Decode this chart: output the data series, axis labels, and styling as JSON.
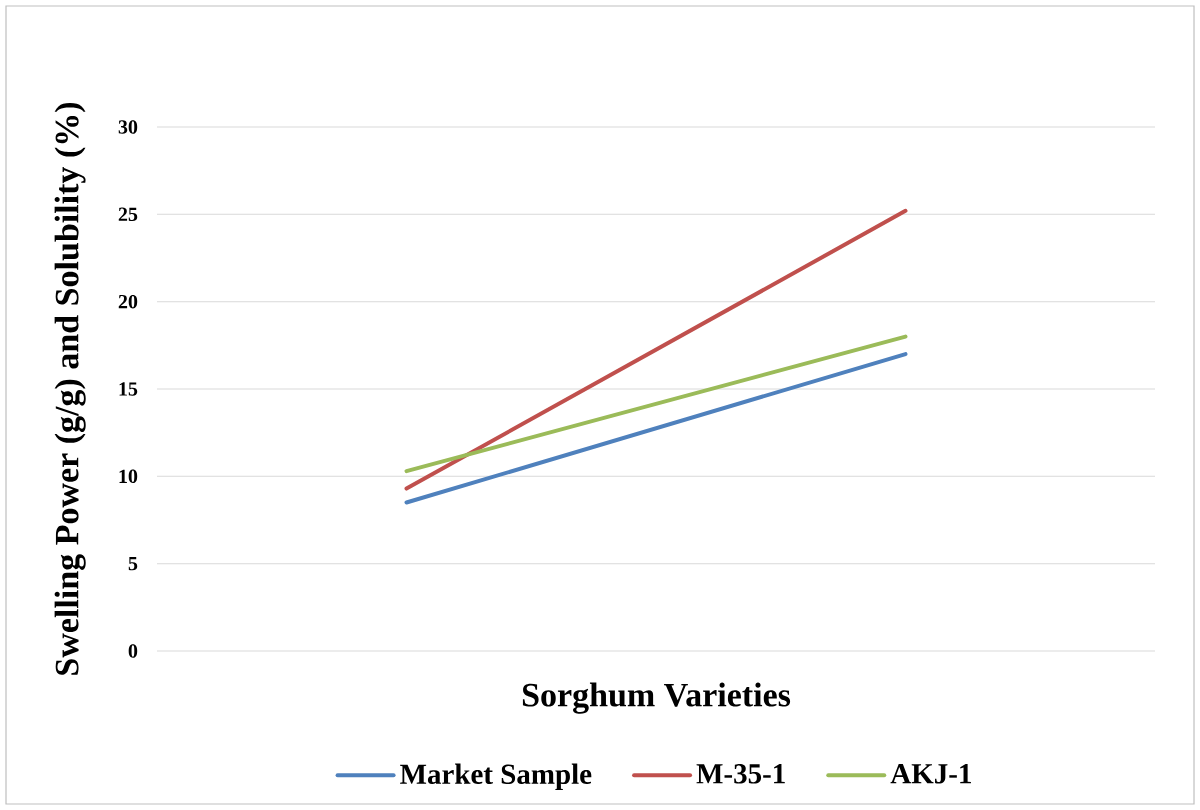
{
  "chart_data": {
    "type": "line",
    "xlabel": "Sorghum Varieties",
    "ylabel": "Swelling Power (g/g) and Solubility (%)",
    "categories": [
      null,
      null
    ],
    "series": [
      {
        "name": "Market Sample",
        "color": "#4f81bd",
        "values": [
          8.5,
          17.0
        ]
      },
      {
        "name": "M-35-1",
        "color": "#c0504d",
        "values": [
          9.3,
          25.2
        ]
      },
      {
        "name": "AKJ-1",
        "color": "#9bbb59",
        "values": [
          10.3,
          18.0
        ]
      }
    ],
    "ylim": [
      0,
      30
    ],
    "yticks": [
      0,
      5,
      10,
      15,
      20,
      25,
      30
    ],
    "grid": "y",
    "legend": "bottom",
    "marker": "none",
    "line_style": "solid"
  }
}
